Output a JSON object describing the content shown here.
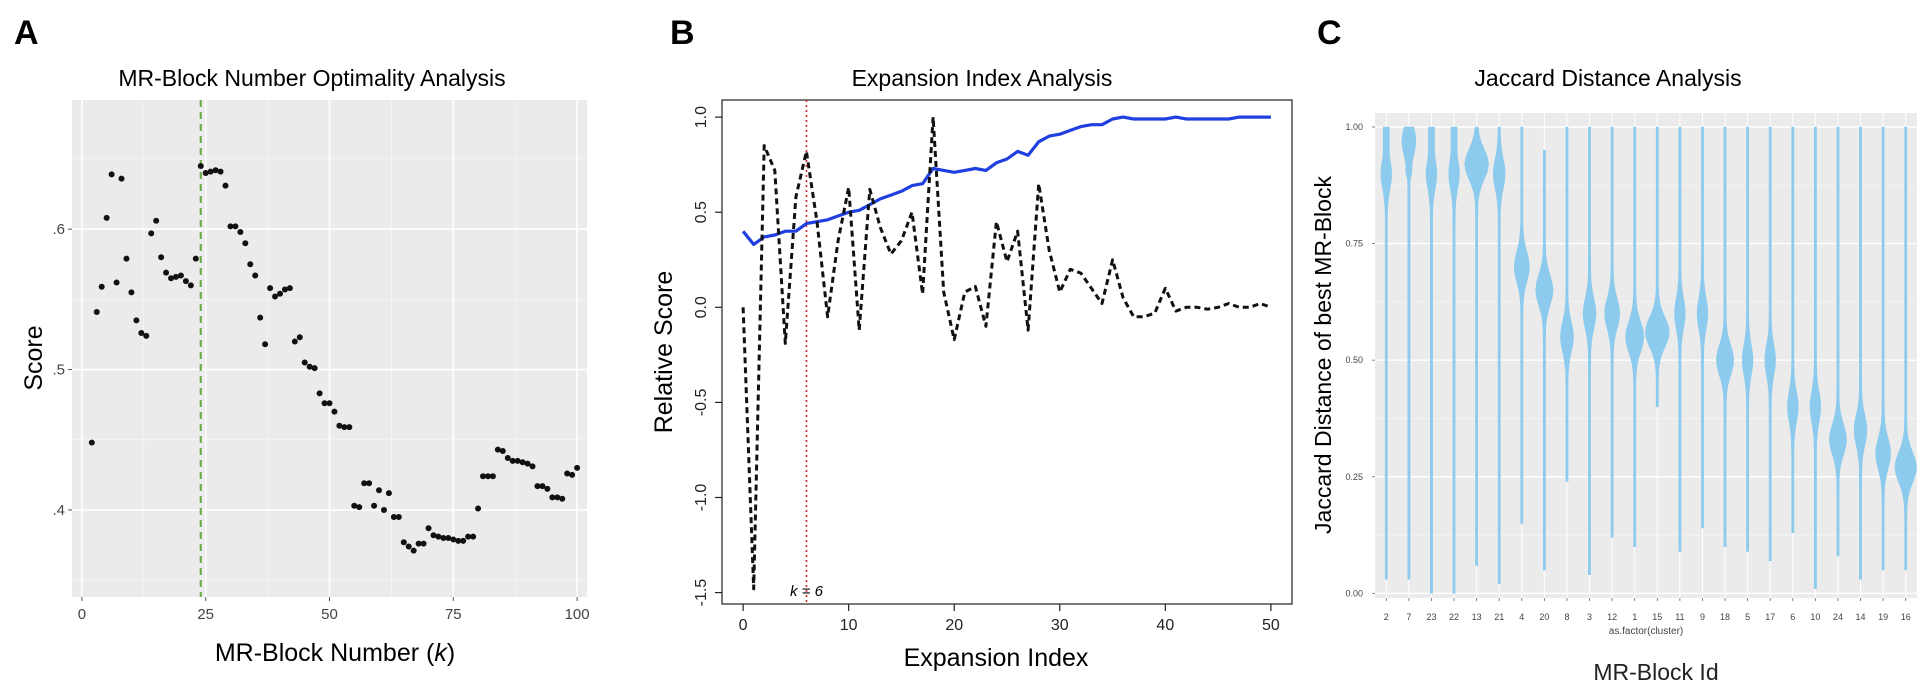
{
  "figure": {
    "panels": [
      {
        "letter": "A",
        "title": "MR-Block Number Optimality Analysis"
      },
      {
        "letter": "B",
        "title": "Expansion Index Analysis"
      },
      {
        "letter": "C",
        "title": "Jaccard Distance Analysis"
      }
    ]
  },
  "chart_data": [
    {
      "type": "scatter",
      "panel": "A",
      "title": "MR-Block Number Optimality Analysis",
      "xlabel": "MR-Block Number (k)",
      "ylabel": "Score",
      "xlim": [
        -2,
        102
      ],
      "ylim": [
        0.338,
        0.692
      ],
      "xticks": [
        0,
        25,
        50,
        75,
        100
      ],
      "xtick_labels": [
        "0",
        "25",
        "50",
        "75",
        "100"
      ],
      "yticks": [
        0.4,
        0.5,
        0.6
      ],
      "ytick_labels": [
        ".4",
        ".5",
        ".6"
      ],
      "grid": true,
      "background": "#ebebeb",
      "point_color": "#111111",
      "vline": {
        "x": 24,
        "color": "#6ab04c",
        "style": "dashed"
      },
      "x": [
        2,
        3,
        4,
        5,
        6,
        7,
        8,
        9,
        10,
        11,
        12,
        13,
        14,
        15,
        16,
        17,
        18,
        19,
        20,
        21,
        22,
        23,
        24,
        25,
        26,
        27,
        28,
        29,
        30,
        31,
        32,
        33,
        34,
        35,
        36,
        37,
        38,
        39,
        40,
        41,
        42,
        43,
        44,
        45,
        46,
        47,
        48,
        49,
        50,
        51,
        52,
        53,
        54,
        55,
        56,
        57,
        58,
        59,
        60,
        61,
        62,
        63,
        64,
        65,
        66,
        67,
        68,
        69,
        70,
        71,
        72,
        73,
        74,
        75,
        76,
        77,
        78,
        79,
        80,
        81,
        82,
        83,
        84,
        85,
        86,
        87,
        88,
        89,
        90,
        91,
        92,
        93,
        94,
        95,
        96,
        97,
        98,
        99,
        100
      ],
      "y": [
        0.448,
        0.541,
        0.559,
        0.608,
        0.639,
        0.562,
        0.636,
        0.579,
        0.555,
        0.535,
        0.526,
        0.524,
        0.597,
        0.606,
        0.58,
        0.569,
        0.565,
        0.566,
        0.567,
        0.563,
        0.56,
        0.579,
        0.645,
        0.64,
        0.641,
        0.642,
        0.641,
        0.631,
        0.602,
        0.602,
        0.598,
        0.59,
        0.575,
        0.567,
        0.537,
        0.518,
        0.558,
        0.552,
        0.554,
        0.557,
        0.558,
        0.52,
        0.523,
        0.505,
        0.502,
        0.501,
        0.483,
        0.476,
        0.476,
        0.47,
        0.46,
        0.459,
        0.459,
        0.403,
        0.402,
        0.419,
        0.419,
        0.403,
        0.414,
        0.4,
        0.412,
        0.395,
        0.395,
        0.377,
        0.374,
        0.371,
        0.376,
        0.376,
        0.387,
        0.382,
        0.381,
        0.38,
        0.38,
        0.379,
        0.378,
        0.378,
        0.381,
        0.381,
        0.401,
        0.424,
        0.424,
        0.424,
        0.443,
        0.442,
        0.437,
        0.435,
        0.435,
        0.434,
        0.433,
        0.431,
        0.417,
        0.417,
        0.415,
        0.409,
        0.409,
        0.408,
        0.426,
        0.425,
        0.43
      ]
    },
    {
      "type": "line",
      "panel": "B",
      "title": "Expansion Index Analysis",
      "xlabel": "Expansion Index",
      "ylabel": "Relative Score",
      "xlim": [
        -2,
        52
      ],
      "ylim": [
        -1.56,
        1.09
      ],
      "xticks": [
        0,
        10,
        20,
        30,
        40,
        50
      ],
      "xtick_labels": [
        "0",
        "10",
        "20",
        "30",
        "40",
        "50"
      ],
      "yticks": [
        -1.5,
        -1.0,
        -0.5,
        0.0,
        0.5,
        1.0
      ],
      "ytick_labels": [
        "-1.5",
        "-1.0",
        "-0.5",
        "0.0",
        "0.5",
        "1.0"
      ],
      "vline": {
        "x": 6,
        "label": "k = 6",
        "color": "#d62728",
        "style": "dotted"
      },
      "series": [
        {
          "color": "#1f3fe0",
          "style": "solid",
          "x": [
            0,
            1,
            2,
            3,
            4,
            5,
            6,
            7,
            8,
            9,
            10,
            11,
            12,
            13,
            14,
            15,
            16,
            17,
            18,
            19,
            20,
            21,
            22,
            23,
            24,
            25,
            26,
            27,
            28,
            29,
            30,
            31,
            32,
            33,
            34,
            35,
            36,
            37,
            38,
            39,
            40,
            41,
            42,
            43,
            44,
            45,
            46,
            47,
            48,
            49,
            50
          ],
          "y": [
            0.4,
            0.33,
            0.37,
            0.38,
            0.4,
            0.4,
            0.44,
            0.45,
            0.46,
            0.48,
            0.5,
            0.51,
            0.54,
            0.57,
            0.59,
            0.61,
            0.64,
            0.65,
            0.73,
            0.72,
            0.71,
            0.72,
            0.73,
            0.72,
            0.76,
            0.78,
            0.82,
            0.8,
            0.87,
            0.9,
            0.91,
            0.93,
            0.95,
            0.96,
            0.96,
            0.99,
            1.0,
            0.99,
            0.99,
            0.99,
            0.99,
            1.0,
            0.99,
            0.99,
            0.99,
            0.99,
            0.99,
            1.0,
            1.0,
            1.0,
            1.0
          ]
        },
        {
          "color": "#111111",
          "style": "dashed",
          "x": [
            0,
            1,
            2,
            3,
            4,
            5,
            6,
            7,
            8,
            9,
            10,
            11,
            12,
            13,
            14,
            15,
            16,
            17,
            18,
            19,
            20,
            21,
            22,
            23,
            24,
            25,
            26,
            27,
            28,
            29,
            30,
            31,
            32,
            33,
            34,
            35,
            36,
            37,
            38,
            39,
            40,
            41,
            42,
            43,
            44,
            45,
            46,
            47,
            48,
            49,
            50
          ],
          "y": [
            0.0,
            -1.48,
            0.85,
            0.72,
            -0.19,
            0.58,
            0.82,
            0.45,
            -0.05,
            0.35,
            0.63,
            -0.12,
            0.62,
            0.42,
            0.28,
            0.35,
            0.5,
            0.07,
            1.0,
            0.08,
            -0.17,
            0.08,
            0.11,
            -0.1,
            0.45,
            0.24,
            0.4,
            -0.12,
            0.65,
            0.3,
            0.08,
            0.2,
            0.18,
            0.1,
            0.02,
            0.25,
            0.05,
            -0.05,
            -0.05,
            -0.03,
            0.1,
            -0.02,
            0.0,
            0.0,
            -0.01,
            0.0,
            0.02,
            0.0,
            0.0,
            0.02,
            0.0
          ]
        }
      ]
    },
    {
      "type": "violin",
      "panel": "C",
      "title": "Jaccard Distance Analysis",
      "xlabel": "as.factor(cluster)",
      "outer_xlabel": "MR-Block Id",
      "ylabel": "Jaccard Distance of best MR-Block",
      "ylim": [
        -0.01,
        1.03
      ],
      "yticks": [
        0.0,
        0.25,
        0.5,
        0.75,
        1.0
      ],
      "ytick_labels": [
        "0.00",
        "0.25",
        "0.50",
        "0.75",
        "1.00"
      ],
      "background": "#ebebeb",
      "fill_color": "#8ccbee",
      "categories": [
        "2",
        "7",
        "23",
        "22",
        "13",
        "21",
        "4",
        "20",
        "8",
        "3",
        "12",
        "1",
        "15",
        "11",
        "9",
        "18",
        "5",
        "17",
        "6",
        "10",
        "24",
        "14",
        "19",
        "16"
      ],
      "ranges": [
        [
          0.03,
          1.0
        ],
        [
          0.03,
          1.0
        ],
        [
          0.0,
          1.0
        ],
        [
          0.0,
          1.0
        ],
        [
          0.06,
          1.0
        ],
        [
          0.02,
          1.0
        ],
        [
          0.15,
          1.0
        ],
        [
          0.05,
          0.95
        ],
        [
          0.24,
          1.0
        ],
        [
          0.04,
          1.0
        ],
        [
          0.12,
          1.0
        ],
        [
          0.1,
          1.0
        ],
        [
          0.4,
          1.0
        ],
        [
          0.09,
          1.0
        ],
        [
          0.14,
          1.0
        ],
        [
          0.1,
          1.0
        ],
        [
          0.09,
          1.0
        ],
        [
          0.07,
          1.0
        ],
        [
          0.13,
          1.0
        ],
        [
          0.01,
          1.0
        ],
        [
          0.08,
          1.0
        ],
        [
          0.03,
          1.0
        ],
        [
          0.05,
          1.0
        ],
        [
          0.05,
          1.0
        ]
      ],
      "peaks": [
        [
          0.9,
          0.4
        ],
        [
          0.97,
          0.55
        ],
        [
          0.9,
          0.4
        ],
        [
          0.9,
          0.4
        ],
        [
          0.92,
          1.0
        ],
        [
          0.9,
          0.45
        ],
        [
          0.7,
          0.6
        ],
        [
          0.65,
          0.7
        ],
        [
          0.55,
          0.5
        ],
        [
          0.6,
          0.5
        ],
        [
          0.6,
          0.6
        ],
        [
          0.55,
          0.75
        ],
        [
          0.56,
          1.0
        ],
        [
          0.6,
          0.4
        ],
        [
          0.6,
          0.4
        ],
        [
          0.5,
          0.7
        ],
        [
          0.5,
          0.4
        ],
        [
          0.5,
          0.4
        ],
        [
          0.4,
          0.4
        ],
        [
          0.4,
          0.4
        ],
        [
          0.33,
          0.7
        ],
        [
          0.35,
          0.5
        ],
        [
          0.3,
          0.6
        ],
        [
          0.27,
          0.9
        ]
      ]
    }
  ]
}
